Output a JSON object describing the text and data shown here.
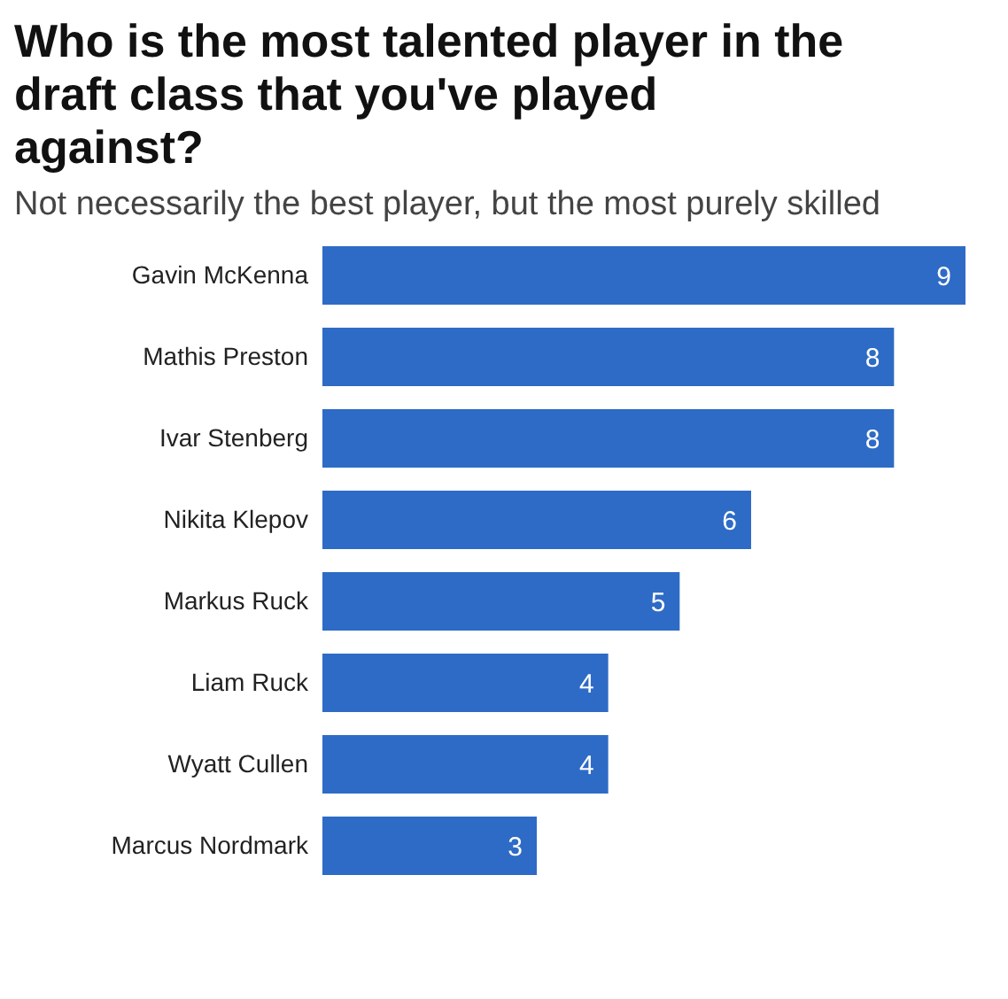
{
  "chart_data": {
    "type": "bar",
    "orientation": "horizontal",
    "title": "Who is the most talented player in the draft class that you've played against?",
    "subtitle": "Not necessarily the best player, but the most purely skilled",
    "categories": [
      "Gavin McKenna",
      "Mathis Preston",
      "Ivar Stenberg",
      "Nikita Klepov",
      "Markus Ruck",
      "Liam Ruck",
      "Wyatt Cullen",
      "Marcus Nordmark"
    ],
    "values": [
      9,
      8,
      8,
      6,
      5,
      4,
      4,
      3
    ],
    "color": "#2e6bc6",
    "data_labels": true
  }
}
